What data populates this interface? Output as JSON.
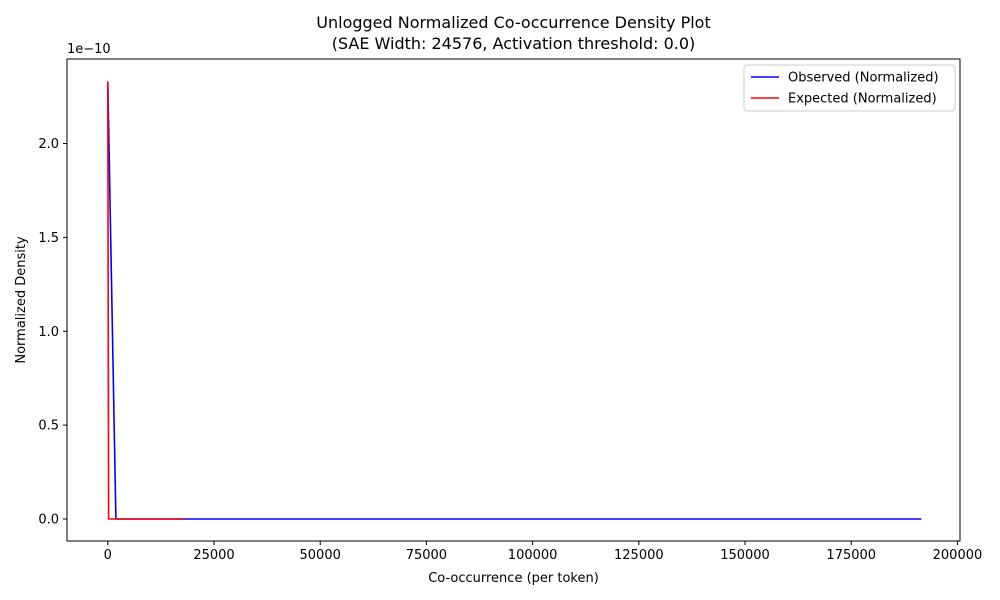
{
  "chart_data": {
    "type": "line",
    "title": "Unlogged Normalized Co-occurrence Density Plot",
    "subtitle": "(SAE Width: 24576, Activation threshold: 0.0)",
    "xlabel": "Co-occurrence (per token)",
    "ylabel": "Normalized Density",
    "y_multiplier_label": "1e−10",
    "xlim": [
      -9600,
      200600
    ],
    "ylim": [
      -1.17e-11,
      2.45e-10
    ],
    "x_ticks": [
      0,
      25000,
      50000,
      75000,
      100000,
      125000,
      150000,
      175000,
      200000
    ],
    "x_tick_labels": [
      "0",
      "25000",
      "50000",
      "75000",
      "100000",
      "125000",
      "150000",
      "175000",
      "200000"
    ],
    "y_ticks": [
      0,
      5e-11,
      1e-10,
      1.5e-10,
      2e-10
    ],
    "y_tick_labels": [
      "0.0",
      "0.5",
      "1.0",
      "1.5",
      "2.0"
    ],
    "grid": false,
    "legend_position": "top-right",
    "series": [
      {
        "name": "Observed (Normalized)",
        "color": "#0000ff",
        "x": [
          0,
          1900,
          191500
        ],
        "y": [
          2.33e-10,
          0,
          0
        ]
      },
      {
        "name": "Expected (Normalized)",
        "color": "#ff0000",
        "x": [
          0,
          200,
          18000
        ],
        "y": [
          2.33e-10,
          0,
          0
        ]
      }
    ]
  }
}
